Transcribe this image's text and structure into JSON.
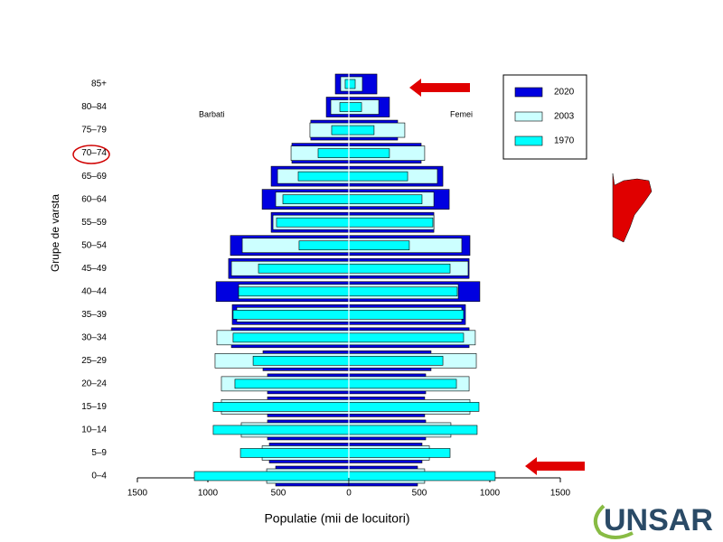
{
  "chart_data": {
    "type": "pyramid",
    "y_label": "Grupe de varsta",
    "x_label": "Populatie (mii de locuitori)",
    "left_label": "Barbati",
    "right_label": "Femei",
    "logo": "UNSAR",
    "categories": [
      "0–4",
      "5–9",
      "10–14",
      "15–19",
      "20–24",
      "25–29",
      "30–34",
      "35–39",
      "40–44",
      "45–49",
      "50–54",
      "55–59",
      "60–64",
      "65–69",
      "70–74",
      "75–79",
      "80–84",
      "85+"
    ],
    "xlim": [
      -1500,
      1500
    ],
    "xticks": [
      {
        "value": -1500,
        "label": "1500"
      },
      {
        "value": -1000,
        "label": "1000"
      },
      {
        "value": -500,
        "label": "500"
      },
      0,
      500,
      1000,
      1500
    ],
    "series": [
      {
        "name": "2020",
        "color": "#0000e0",
        "male": [
          519,
          564,
          577,
          577,
          577,
          609,
          833,
          827,
          942,
          853,
          840,
          551,
          615,
          551,
          404,
          270,
          160,
          96
        ],
        "female": [
          487,
          519,
          545,
          538,
          545,
          583,
          853,
          827,
          929,
          853,
          859,
          603,
          712,
          667,
          513,
          346,
          288,
          199
        ]
      },
      {
        "name": "2003",
        "color": "#ccffff",
        "male": [
          583,
          615,
          763,
          904,
          904,
          949,
          936,
          795,
          782,
          833,
          756,
          538,
          519,
          506,
          410,
          276,
          128,
          58
        ],
        "female": [
          538,
          571,
          724,
          859,
          853,
          904,
          897,
          801,
          776,
          846,
          801,
          603,
          603,
          628,
          538,
          397,
          212,
          96
        ]
      },
      {
        "name": "1970",
        "color": "#00ffff",
        "male": [
          1096,
          769,
          962,
          962,
          808,
          679,
          821,
          821,
          782,
          641,
          353,
          513,
          468,
          359,
          218,
          122,
          64,
          26
        ],
        "female": [
          1038,
          718,
          910,
          923,
          763,
          667,
          814,
          814,
          769,
          718,
          429,
          596,
          519,
          417,
          288,
          179,
          90,
          45
        ]
      }
    ]
  }
}
